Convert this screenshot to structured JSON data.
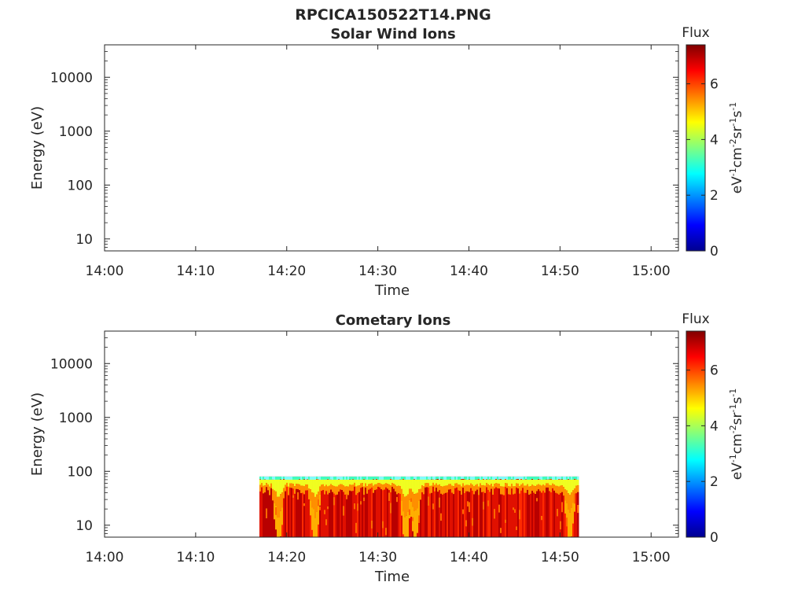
{
  "figure_title": "RPCICA150522T14.PNG",
  "colorbar_scale": {
    "stops": [
      "#00008f",
      "#0000ff",
      "#0080ff",
      "#00ffff",
      "#80ff80",
      "#ffff00",
      "#ff8000",
      "#ff0000",
      "#800000"
    ]
  },
  "chart_data": [
    {
      "type": "heatmap",
      "title": "Solar Wind Ions",
      "xlabel": "Time",
      "ylabel": "Energy (eV)",
      "yscale": "log",
      "ylim": [
        6,
        40000
      ],
      "xlim": [
        "14:00",
        "15:03"
      ],
      "x_ticks": [
        "14:00",
        "14:10",
        "14:20",
        "14:30",
        "14:40",
        "14:50",
        "15:00"
      ],
      "y_ticks": [
        "10",
        "100",
        "1000",
        "10000"
      ],
      "colorbar": {
        "title": "Flux",
        "label": "eV-1cm-2sr-1s-1",
        "range": [
          0,
          7.4
        ],
        "ticks": [
          "0",
          "2",
          "4",
          "6"
        ]
      },
      "data_extent": null,
      "grid": false
    },
    {
      "type": "heatmap",
      "title": "Cometary Ions",
      "xlabel": "Time",
      "ylabel": "Energy (eV)",
      "yscale": "log",
      "ylim": [
        6,
        40000
      ],
      "xlim": [
        "14:00",
        "15:03"
      ],
      "x_ticks": [
        "14:00",
        "14:10",
        "14:20",
        "14:30",
        "14:40",
        "14:50",
        "15:00"
      ],
      "y_ticks": [
        "10",
        "100",
        "1000",
        "10000"
      ],
      "colorbar": {
        "title": "Flux",
        "label": "eV-1cm-2sr-1s-1",
        "range": [
          0,
          7.4
        ],
        "ticks": [
          "0",
          "2",
          "4",
          "6"
        ]
      },
      "data_extent": {
        "t_start": "14:17",
        "t_end": "14:52",
        "e_min": 6,
        "e_max": 80
      },
      "notes_visible": {
        "dips": [
          "14:19",
          "14:23",
          "14:33",
          "14:34",
          "14:51"
        ]
      },
      "grid": false
    }
  ]
}
